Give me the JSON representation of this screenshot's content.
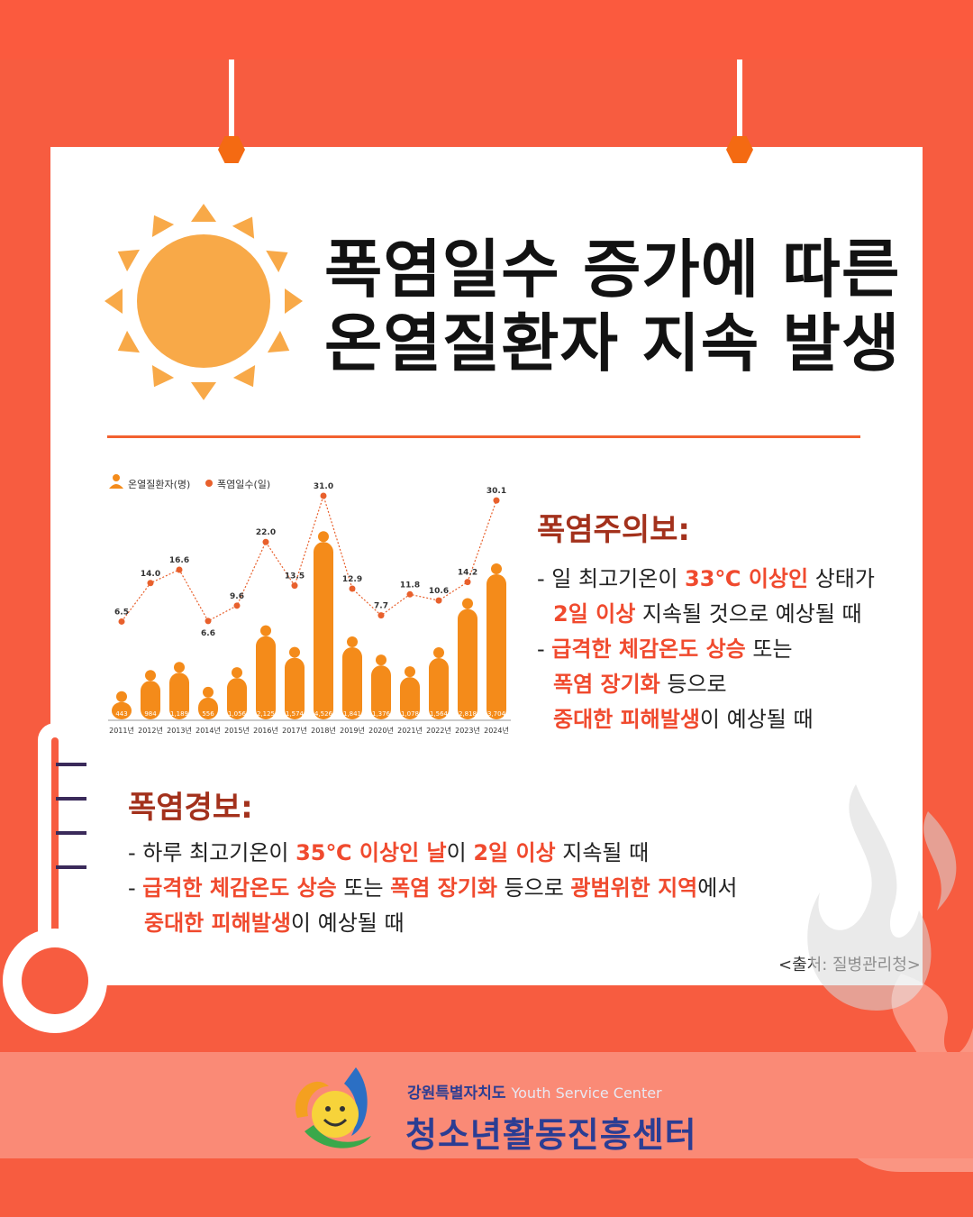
{
  "title": {
    "line1": "폭염일수 증가에 따른",
    "line2": "온열질환자 지속 발생"
  },
  "chart_data": {
    "type": "bar",
    "categories": [
      "2011년",
      "2012년",
      "2013년",
      "2014년",
      "2015년",
      "2016년",
      "2017년",
      "2018년",
      "2019년",
      "2020년",
      "2021년",
      "2022년",
      "2023년",
      "2024년"
    ],
    "legend": [
      "온열질환자(명)",
      "폭염일수(일)"
    ],
    "series": [
      {
        "name": "온열질환자(명)",
        "type": "bar",
        "values": [
          443,
          984,
          1189,
          556,
          1056,
          2125,
          1574,
          4526,
          1841,
          1376,
          1078,
          1564,
          2818,
          3704
        ]
      },
      {
        "name": "폭염일수(일)",
        "type": "line",
        "values": [
          6.5,
          14.0,
          16.6,
          6.6,
          9.6,
          22.0,
          13.5,
          31.0,
          12.9,
          7.7,
          11.8,
          10.6,
          14.2,
          30.1
        ]
      }
    ],
    "bar_labels": [
      "443",
      "984",
      "1,189",
      "556",
      "1,056",
      "2,125",
      "1,574",
      "4,526",
      "1,841",
      "1,376",
      "1,078",
      "1,564",
      "2,818",
      "3,704"
    ],
    "line_labels": [
      "6.5",
      "14.0",
      "16.6",
      "6.6",
      "9.6",
      "22.0",
      "13.5",
      "31.0",
      "12.9",
      "7.7",
      "11.8",
      "10.6",
      "14.2",
      "30.1"
    ],
    "legend_placement": "top-left",
    "grid": false
  },
  "advisory": {
    "title": "폭염주의보:",
    "l1a": "- 일 최고기온이 ",
    "l1b": "33℃ 이상인",
    "l1c": " 상태가",
    "l2a": "2일 이상",
    "l2b": " 지속될 것으로 예상될 때",
    "l3a": "- ",
    "l3b": "급격한 체감온도 상승",
    "l3c": " 또는",
    "l4a": "폭염 장기화",
    "l4b": " 등으로",
    "l5a": "중대한 피해발생",
    "l5b": "이 예상될 때"
  },
  "warning": {
    "title": "폭염경보:",
    "l1a": "- 하루 최고기온이 ",
    "l1b": "35℃ 이상인 날",
    "l1c": "이 ",
    "l1d": "2일 이상",
    "l1e": " 지속될 때",
    "l2a": "- ",
    "l2b": "급격한 체감온도 상승",
    "l2c": " 또는 ",
    "l2d": "폭염 장기화",
    "l2e": " 등으로 ",
    "l2f": "광범위한 지역",
    "l2g": "에서",
    "l3a": "중대한 피해발생",
    "l3b": "이 예상될 때"
  },
  "source": "<출처: 질병관리청>",
  "footer": {
    "org_top": "강원특별자치도",
    "org_top_en": "Youth Service Center",
    "org_name": "청소년활동진흥센터"
  },
  "colors": {
    "background": "#f75c40",
    "bar": "#f48b1a",
    "line": "#e8602c",
    "highlight": "#f04a2e",
    "navy": "#2b3d93"
  }
}
